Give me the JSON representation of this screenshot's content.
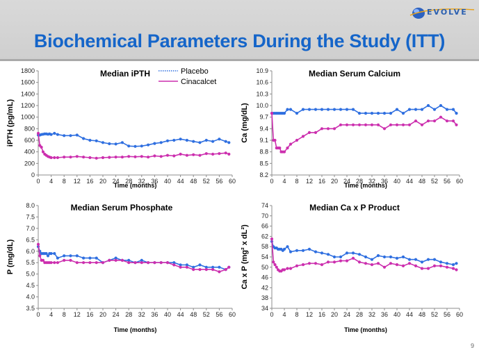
{
  "slide": {
    "title": "Biochemical Parameters During the Study (ITT)",
    "logo_text": "EVOLVE",
    "page_number": "9"
  },
  "colors": {
    "title_blue": "#1565c9",
    "placebo": "#2f6fe0",
    "cinacalcet": "#cc2fae"
  },
  "legend": {
    "placebo": "Placebo",
    "cinacalcet": "Cinacalcet"
  },
  "chart_data": [
    {
      "type": "line",
      "title": "Median  iPTH",
      "xlabel": "Time (months)",
      "ylabel": "iPTH (pg/mL)",
      "xlim": [
        0,
        60
      ],
      "ylim": [
        0,
        1800
      ],
      "xticks": [
        0,
        4,
        8,
        12,
        16,
        20,
        24,
        28,
        32,
        36,
        40,
        44,
        48,
        52,
        56,
        60
      ],
      "yticks": [
        0,
        200,
        400,
        600,
        800,
        1000,
        1200,
        1400,
        1600,
        1800
      ],
      "series": [
        {
          "name": "Placebo",
          "x": [
            0,
            0.5,
            1,
            1.5,
            2,
            2.5,
            3,
            3.5,
            4,
            5,
            6,
            8,
            10,
            12,
            14,
            16,
            18,
            20,
            22,
            24,
            26,
            28,
            30,
            32,
            34,
            36,
            38,
            40,
            42,
            44,
            46,
            48,
            50,
            52,
            54,
            56,
            58,
            59
          ],
          "y": [
            690,
            690,
            700,
            705,
            710,
            710,
            705,
            710,
            700,
            720,
            700,
            680,
            680,
            690,
            630,
            600,
            590,
            560,
            540,
            535,
            560,
            500,
            495,
            500,
            520,
            545,
            560,
            590,
            600,
            620,
            600,
            580,
            560,
            600,
            580,
            620,
            580,
            560
          ]
        },
        {
          "name": "Cinacalcet",
          "x": [
            0,
            0.5,
            1,
            1.5,
            2,
            2.5,
            3,
            3.5,
            4,
            5,
            6,
            8,
            10,
            12,
            14,
            16,
            18,
            20,
            22,
            24,
            26,
            28,
            30,
            32,
            34,
            36,
            38,
            40,
            42,
            44,
            46,
            48,
            50,
            52,
            54,
            56,
            58,
            59
          ],
          "y": [
            720,
            510,
            480,
            400,
            360,
            340,
            320,
            310,
            300,
            300,
            300,
            310,
            310,
            320,
            310,
            300,
            290,
            300,
            305,
            310,
            310,
            320,
            315,
            320,
            310,
            330,
            320,
            340,
            330,
            360,
            340,
            350,
            340,
            370,
            360,
            370,
            380,
            360
          ]
        }
      ]
    },
    {
      "type": "line",
      "title": "Median  Serum Calcium",
      "xlabel": "Time (months)",
      "ylabel": "Ca  (mg/dL)",
      "xlim": [
        0,
        60
      ],
      "ylim": [
        8.2,
        10.9
      ],
      "xticks": [
        0,
        4,
        8,
        12,
        16,
        20,
        24,
        28,
        32,
        36,
        40,
        44,
        48,
        52,
        56,
        60
      ],
      "yticks": [
        8.2,
        8.5,
        8.8,
        9.1,
        9.4,
        9.7,
        10.0,
        10.3,
        10.6,
        10.9
      ],
      "series": [
        {
          "name": "Placebo",
          "x": [
            0,
            0.5,
            1,
            1.5,
            2,
            2.5,
            3,
            3.5,
            4,
            5,
            6,
            8,
            10,
            12,
            14,
            16,
            18,
            20,
            22,
            24,
            26,
            28,
            30,
            32,
            34,
            36,
            38,
            40,
            42,
            44,
            46,
            48,
            50,
            52,
            54,
            56,
            58,
            59
          ],
          "y": [
            9.8,
            9.8,
            9.8,
            9.8,
            9.8,
            9.8,
            9.8,
            9.8,
            9.8,
            9.9,
            9.9,
            9.8,
            9.9,
            9.9,
            9.9,
            9.9,
            9.9,
            9.9,
            9.9,
            9.9,
            9.9,
            9.8,
            9.8,
            9.8,
            9.8,
            9.8,
            9.8,
            9.9,
            9.8,
            9.9,
            9.9,
            9.9,
            10.0,
            9.9,
            10.0,
            9.9,
            9.9,
            9.8
          ]
        },
        {
          "name": "Cinacalcet",
          "x": [
            0,
            0.5,
            1,
            1.5,
            2,
            2.5,
            3,
            3.5,
            4,
            5,
            6,
            8,
            10,
            12,
            14,
            16,
            18,
            20,
            22,
            24,
            26,
            28,
            30,
            32,
            34,
            36,
            38,
            40,
            42,
            44,
            46,
            48,
            50,
            52,
            54,
            56,
            58,
            59
          ],
          "y": [
            9.8,
            9.1,
            9.1,
            8.9,
            8.9,
            8.9,
            8.8,
            8.8,
            8.8,
            8.9,
            9.0,
            9.1,
            9.2,
            9.3,
            9.3,
            9.4,
            9.4,
            9.4,
            9.5,
            9.5,
            9.5,
            9.5,
            9.5,
            9.5,
            9.5,
            9.4,
            9.5,
            9.5,
            9.5,
            9.5,
            9.6,
            9.5,
            9.6,
            9.6,
            9.7,
            9.6,
            9.6,
            9.5
          ]
        }
      ]
    },
    {
      "type": "line",
      "title": "Median  Serum Phosphate",
      "xlabel": "Time (months)",
      "ylabel": "P  (mg/dL)",
      "xlim": [
        0,
        60
      ],
      "ylim": [
        3.5,
        8.0
      ],
      "xticks": [
        0,
        4,
        8,
        12,
        16,
        20,
        24,
        28,
        32,
        36,
        40,
        44,
        48,
        52,
        56,
        60
      ],
      "yticks": [
        3.5,
        4.0,
        4.5,
        5.0,
        5.5,
        6.0,
        6.5,
        7.0,
        7.5,
        8.0
      ],
      "series": [
        {
          "name": "Placebo",
          "x": [
            0,
            0.5,
            1,
            1.5,
            2,
            2.5,
            3,
            3.5,
            4,
            5,
            6,
            8,
            10,
            12,
            14,
            16,
            18,
            20,
            22,
            24,
            26,
            28,
            30,
            32,
            34,
            36,
            38,
            40,
            42,
            44,
            46,
            48,
            50,
            52,
            54,
            56,
            58,
            59
          ],
          "y": [
            6.2,
            6.0,
            5.9,
            5.9,
            5.9,
            5.9,
            5.8,
            5.9,
            5.9,
            5.9,
            5.7,
            5.8,
            5.8,
            5.8,
            5.7,
            5.7,
            5.7,
            5.5,
            5.6,
            5.7,
            5.6,
            5.6,
            5.5,
            5.6,
            5.5,
            5.5,
            5.5,
            5.5,
            5.5,
            5.4,
            5.4,
            5.3,
            5.4,
            5.3,
            5.3,
            5.3,
            5.2,
            5.3
          ]
        },
        {
          "name": "Cinacalcet",
          "x": [
            0,
            0.5,
            1,
            1.5,
            2,
            2.5,
            3,
            3.5,
            4,
            5,
            6,
            8,
            10,
            12,
            14,
            16,
            18,
            20,
            22,
            24,
            26,
            28,
            30,
            32,
            34,
            36,
            38,
            40,
            42,
            44,
            46,
            48,
            50,
            52,
            54,
            56,
            58,
            59
          ],
          "y": [
            6.3,
            5.8,
            5.6,
            5.6,
            5.5,
            5.5,
            5.5,
            5.5,
            5.5,
            5.5,
            5.5,
            5.6,
            5.6,
            5.5,
            5.5,
            5.5,
            5.5,
            5.5,
            5.6,
            5.6,
            5.6,
            5.5,
            5.5,
            5.5,
            5.5,
            5.5,
            5.5,
            5.5,
            5.4,
            5.3,
            5.3,
            5.2,
            5.2,
            5.2,
            5.2,
            5.1,
            5.2,
            5.3
          ]
        }
      ]
    },
    {
      "type": "line",
      "title": "Median  Ca x P Product",
      "xlabel": "Time (months)",
      "ylabel": "Ca x P (mg² x dL²)",
      "xlim": [
        0,
        60
      ],
      "ylim": [
        34,
        74
      ],
      "xticks": [
        0,
        4,
        8,
        12,
        16,
        20,
        24,
        28,
        32,
        36,
        40,
        44,
        48,
        52,
        56,
        60
      ],
      "yticks": [
        34,
        38,
        42,
        46,
        50,
        54,
        58,
        62,
        66,
        70,
        74
      ],
      "series": [
        {
          "name": "Placebo",
          "x": [
            0,
            0.5,
            1,
            1.5,
            2,
            2.5,
            3,
            3.5,
            4,
            5,
            6,
            8,
            10,
            12,
            14,
            16,
            18,
            20,
            22,
            24,
            26,
            28,
            30,
            32,
            34,
            36,
            38,
            40,
            42,
            44,
            46,
            48,
            50,
            52,
            54,
            56,
            58,
            59
          ],
          "y": [
            60,
            58,
            57.5,
            57.5,
            57,
            57,
            57,
            56.5,
            57,
            58,
            56,
            56.5,
            56.5,
            57,
            56,
            55.5,
            55,
            54,
            54,
            55.5,
            55.5,
            55,
            54,
            53,
            54.5,
            54,
            54,
            53.5,
            54,
            53,
            53,
            52,
            53,
            53,
            52,
            51.5,
            51,
            51.5
          ]
        },
        {
          "name": "Cinacalcet",
          "x": [
            0,
            0.5,
            1,
            1.5,
            2,
            2.5,
            3,
            3.5,
            4,
            5,
            6,
            8,
            10,
            12,
            14,
            16,
            18,
            20,
            22,
            24,
            26,
            28,
            30,
            32,
            34,
            36,
            38,
            40,
            42,
            44,
            46,
            48,
            50,
            52,
            54,
            56,
            58,
            59
          ],
          "y": [
            61,
            52,
            51,
            50,
            49,
            48.5,
            48.5,
            49,
            49,
            49.5,
            49.5,
            50.5,
            51,
            51.5,
            51.5,
            51,
            52,
            52,
            52.5,
            52.5,
            53.5,
            52,
            51.5,
            51,
            51.5,
            50,
            51.5,
            51,
            50.5,
            51.5,
            50.5,
            49.5,
            49.5,
            50.5,
            50.5,
            50,
            49.5,
            49
          ]
        }
      ]
    }
  ]
}
